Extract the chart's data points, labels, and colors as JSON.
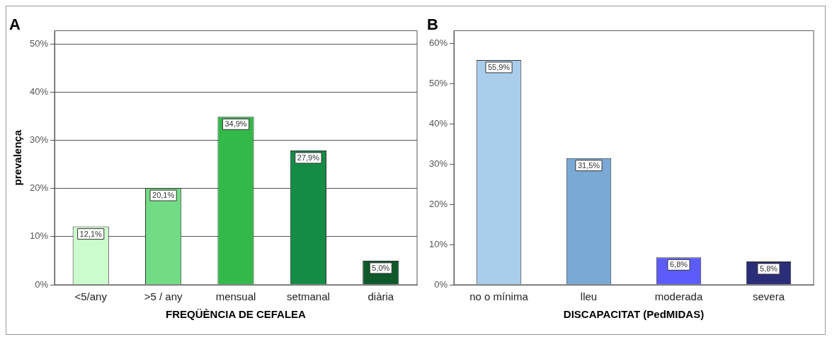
{
  "chart_data": [
    {
      "type": "bar",
      "title": "A",
      "xlabel": "FREQÜÈNCIA DE CEFALEA",
      "ylabel": "prevalença",
      "categories": [
        "<5/any",
        ">5 / any",
        "mensual",
        "setmanal",
        "diària"
      ],
      "values": [
        12.1,
        20.1,
        34.9,
        27.9,
        5.0
      ],
      "colors": [
        "#ccfcce",
        "#72dc84",
        "#33b84a",
        "#148c45",
        "#0e5a2a"
      ],
      "value_labels": [
        "12,1%",
        "20,1%",
        "34,9%",
        "27,9%",
        "5,0%"
      ],
      "ylim": [
        0,
        52.8
      ],
      "yticks": [
        {
          "value": 0,
          "label": "0%"
        },
        {
          "value": 10,
          "label": "10%"
        },
        {
          "value": 20,
          "label": "20%"
        },
        {
          "value": 30,
          "label": "30%"
        },
        {
          "value": 40,
          "label": "40%"
        },
        {
          "value": 50,
          "label": "50%"
        }
      ],
      "grid": "y",
      "legend": false
    },
    {
      "type": "bar",
      "title": "B",
      "xlabel": "DISCAPACITAT (PedMIDAS)",
      "categories": [
        "no o mínima",
        "lleu",
        "moderada",
        "severa"
      ],
      "values": [
        55.9,
        31.5,
        6.8,
        5.8
      ],
      "colors": [
        "#abcdec",
        "#7aa9d6",
        "#5c5cfc",
        "#2a2e78"
      ],
      "value_labels": [
        "55,9%",
        "31,5%",
        "6,8%",
        "5,8%"
      ],
      "ylim": [
        0,
        63.2
      ],
      "yticks": [
        {
          "value": 0,
          "label": "0%"
        },
        {
          "value": 10,
          "label": "10%"
        },
        {
          "value": 20,
          "label": "20%"
        },
        {
          "value": 30,
          "label": "30%"
        },
        {
          "value": 40,
          "label": "40%"
        },
        {
          "value": 50,
          "label": "50%"
        },
        {
          "value": 60,
          "label": "60%"
        }
      ],
      "grid": false,
      "legend": false
    }
  ]
}
